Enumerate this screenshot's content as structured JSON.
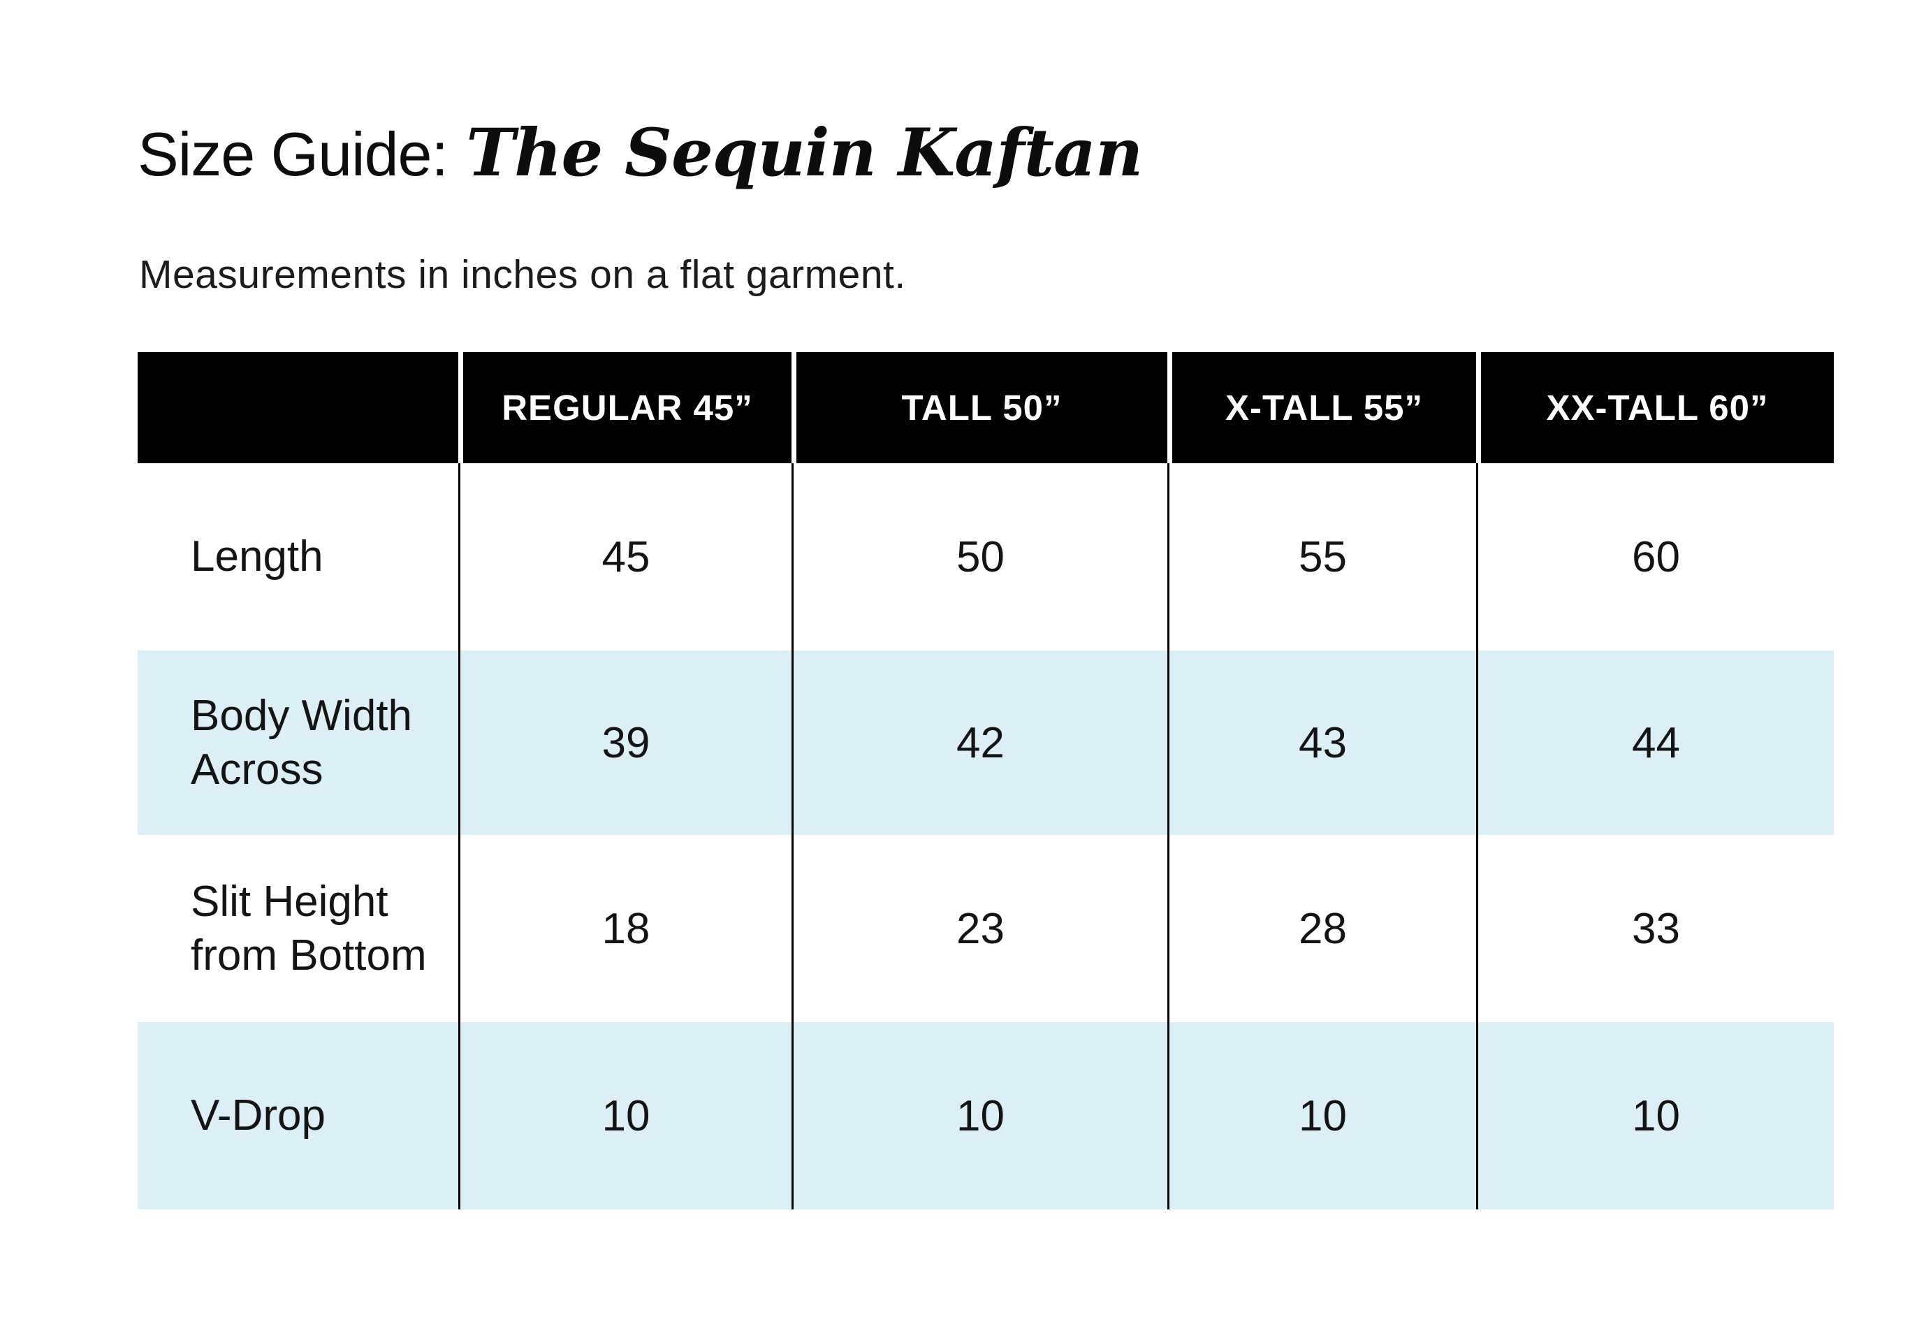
{
  "page": {
    "title_prefix": "Size Guide:",
    "title_emphasis": "The Sequin Kaftan",
    "subtitle": "Measurements in inches on a flat garment."
  },
  "table": {
    "columns": [
      "",
      "REGULAR 45”",
      "TALL 50”",
      "X-TALL 55”",
      "XX-TALL 60”"
    ],
    "rows": [
      {
        "label": "Length",
        "values": [
          "45",
          "50",
          "55",
          "60"
        ]
      },
      {
        "label": "Body Width Across",
        "values": [
          "39",
          "42",
          "43",
          "44"
        ]
      },
      {
        "label": "Slit Height from Bottom",
        "values": [
          "18",
          "23",
          "28",
          "33"
        ]
      },
      {
        "label": "V-Drop",
        "values": [
          "10",
          "10",
          "10",
          "10"
        ]
      }
    ],
    "colors": {
      "header_bg": "#000000",
      "header_text": "#ffffff",
      "stripe_bg": "#dceef6",
      "plain_bg": "#ffffff",
      "divider": "#000000",
      "text": "#141414"
    }
  }
}
